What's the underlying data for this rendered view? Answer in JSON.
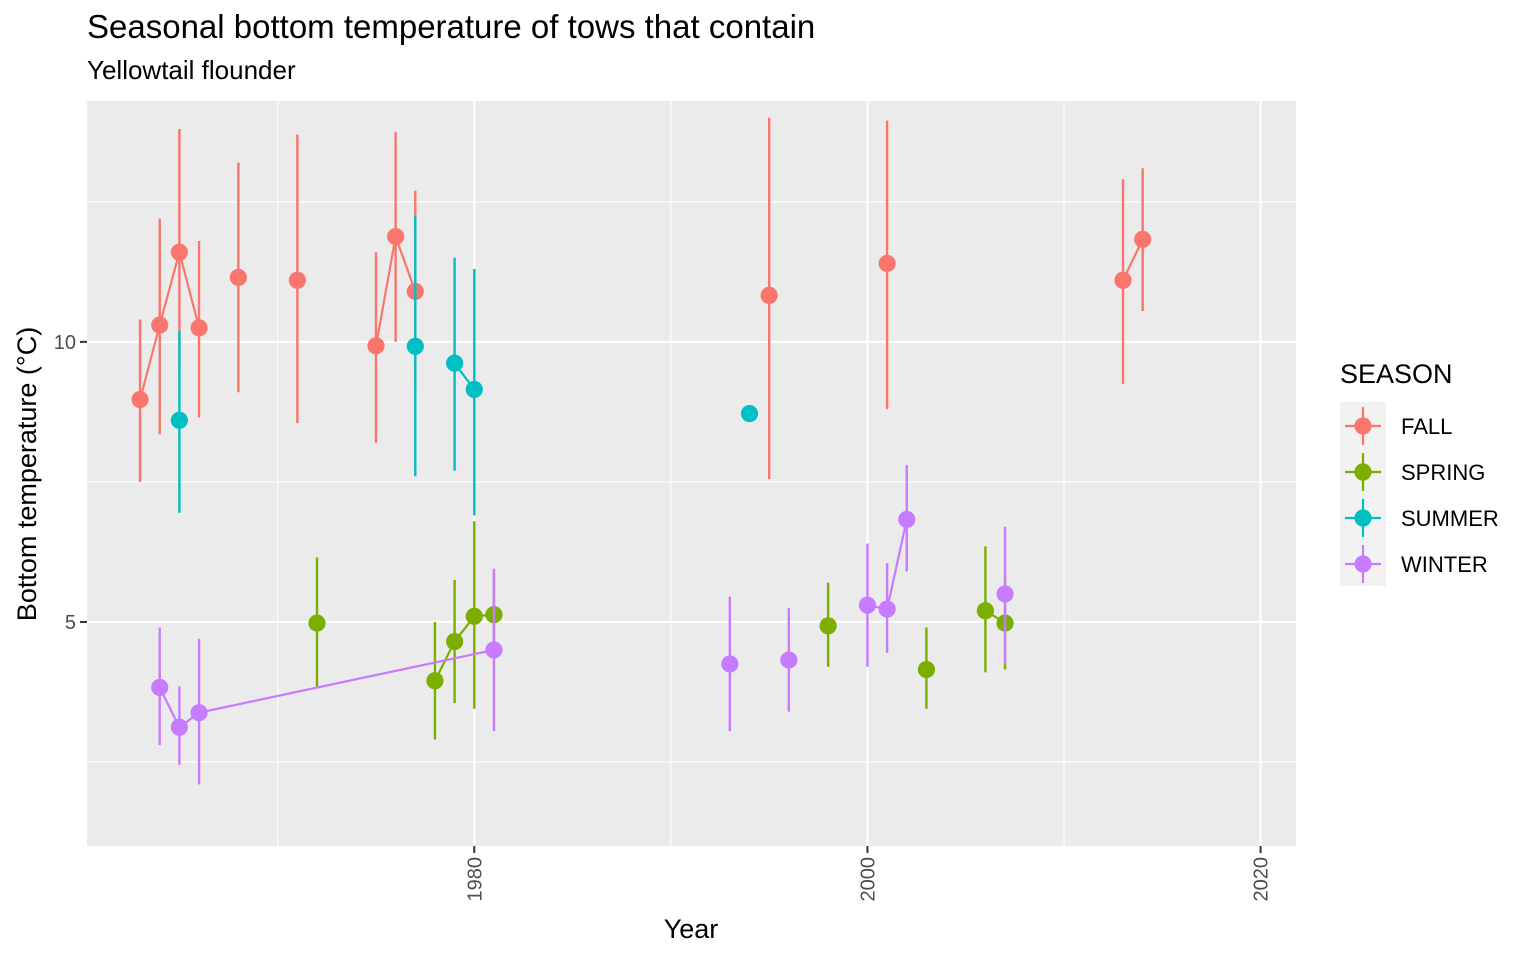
{
  "chart_data": {
    "type": "scatter",
    "title": "Seasonal bottom temperature of tows that contain",
    "subtitle": "Yellowtail flounder",
    "xlabel": "Year",
    "ylabel": "Bottom temperature (°C)",
    "xlim": [
      1960.3,
      2021.8
    ],
    "ylim": [
      1.0,
      14.3
    ],
    "x_ticks": [
      1980,
      2000,
      2020
    ],
    "x_tick_labels": [
      "1980",
      "2000",
      "2020"
    ],
    "x_minor_ticks": [
      1970,
      1990,
      2010
    ],
    "y_ticks": [
      5,
      10
    ],
    "y_tick_labels": [
      "5",
      "10"
    ],
    "y_minor_ticks": [
      2.5,
      7.5,
      12.5
    ],
    "grid": true,
    "legend": {
      "title": "SEASON",
      "position": "right"
    },
    "colors": {
      "FALL": "#F8766D",
      "SPRING": "#7CAE00",
      "SUMMER": "#00BFC4",
      "WINTER": "#C77CFF"
    },
    "series": [
      {
        "name": "FALL",
        "points": [
          {
            "x": 1963,
            "y": 8.97,
            "lo": 7.5,
            "hi": 10.4
          },
          {
            "x": 1964,
            "y": 10.3,
            "lo": 8.35,
            "hi": 12.2
          },
          {
            "x": 1965,
            "y": 11.6,
            "lo": 9.5,
            "hi": 13.8
          },
          {
            "x": 1966,
            "y": 10.25,
            "lo": 8.65,
            "hi": 11.8
          },
          {
            "x": 1968,
            "y": 11.15,
            "lo": 9.1,
            "hi": 13.2
          },
          {
            "x": 1971,
            "y": 11.1,
            "lo": 8.55,
            "hi": 13.7
          },
          {
            "x": 1975,
            "y": 9.93,
            "lo": 8.2,
            "hi": 11.6
          },
          {
            "x": 1976,
            "y": 11.88,
            "lo": 10.0,
            "hi": 13.75
          },
          {
            "x": 1977,
            "y": 10.9,
            "lo": 9.15,
            "hi": 12.7
          },
          {
            "x": 1995,
            "y": 10.83,
            "lo": 7.55,
            "hi": 14.0
          },
          {
            "x": 2001,
            "y": 11.4,
            "lo": 8.8,
            "hi": 13.95
          },
          {
            "x": 2013,
            "y": 11.1,
            "lo": 9.25,
            "hi": 12.9
          },
          {
            "x": 2014,
            "y": 11.83,
            "lo": 10.55,
            "hi": 13.1
          }
        ],
        "lines": [
          [
            1963,
            1964,
            1965,
            1966
          ],
          [
            1975,
            1976,
            1977
          ],
          [
            2013,
            2014
          ]
        ]
      },
      {
        "name": "SPRING",
        "points": [
          {
            "x": 1972,
            "y": 4.98,
            "lo": 3.85,
            "hi": 6.15
          },
          {
            "x": 1978,
            "y": 3.95,
            "lo": 2.9,
            "hi": 5.0
          },
          {
            "x": 1979,
            "y": 4.65,
            "lo": 3.55,
            "hi": 5.75
          },
          {
            "x": 1980,
            "y": 5.1,
            "lo": 3.45,
            "hi": 6.8
          },
          {
            "x": 1981,
            "y": 5.13,
            "lo": 4.4,
            "hi": 5.9
          },
          {
            "x": 1998,
            "y": 4.93,
            "lo": 4.2,
            "hi": 5.7
          },
          {
            "x": 2003,
            "y": 4.15,
            "lo": 3.45,
            "hi": 4.9
          },
          {
            "x": 2006,
            "y": 5.2,
            "lo": 4.1,
            "hi": 6.35
          },
          {
            "x": 2007,
            "y": 4.98,
            "lo": 4.15,
            "hi": 5.85
          }
        ],
        "lines": [
          [
            1978,
            1979,
            1980,
            1981
          ],
          [
            2006,
            2007
          ]
        ]
      },
      {
        "name": "SUMMER",
        "points": [
          {
            "x": 1965,
            "y": 8.6,
            "lo": 6.95,
            "hi": 10.2
          },
          {
            "x": 1977,
            "y": 9.92,
            "lo": 7.6,
            "hi": 12.25
          },
          {
            "x": 1979,
            "y": 9.62,
            "lo": 7.7,
            "hi": 11.5
          },
          {
            "x": 1980,
            "y": 9.15,
            "lo": 6.9,
            "hi": 11.3
          },
          {
            "x": 1994,
            "y": 8.72,
            "lo": 8.72,
            "hi": 8.72
          }
        ],
        "lines": [
          [
            1979,
            1980
          ]
        ]
      },
      {
        "name": "WINTER",
        "points": [
          {
            "x": 1964,
            "y": 3.83,
            "lo": 2.8,
            "hi": 4.9
          },
          {
            "x": 1965,
            "y": 3.12,
            "lo": 2.45,
            "hi": 3.85
          },
          {
            "x": 1966,
            "y": 3.38,
            "lo": 2.1,
            "hi": 4.7
          },
          {
            "x": 1981,
            "y": 4.5,
            "lo": 3.05,
            "hi": 5.95
          },
          {
            "x": 1993,
            "y": 4.25,
            "lo": 3.05,
            "hi": 5.45
          },
          {
            "x": 1996,
            "y": 4.32,
            "lo": 3.4,
            "hi": 5.25
          },
          {
            "x": 2000,
            "y": 5.3,
            "lo": 4.2,
            "hi": 6.4
          },
          {
            "x": 2001,
            "y": 5.23,
            "lo": 4.45,
            "hi": 6.05
          },
          {
            "x": 2002,
            "y": 6.83,
            "lo": 5.9,
            "hi": 7.8
          },
          {
            "x": 2007,
            "y": 5.5,
            "lo": 4.25,
            "hi": 6.7
          }
        ],
        "lines": [
          [
            1964,
            1965,
            1966,
            1981
          ],
          [
            2000,
            2001,
            2002
          ]
        ]
      }
    ]
  }
}
